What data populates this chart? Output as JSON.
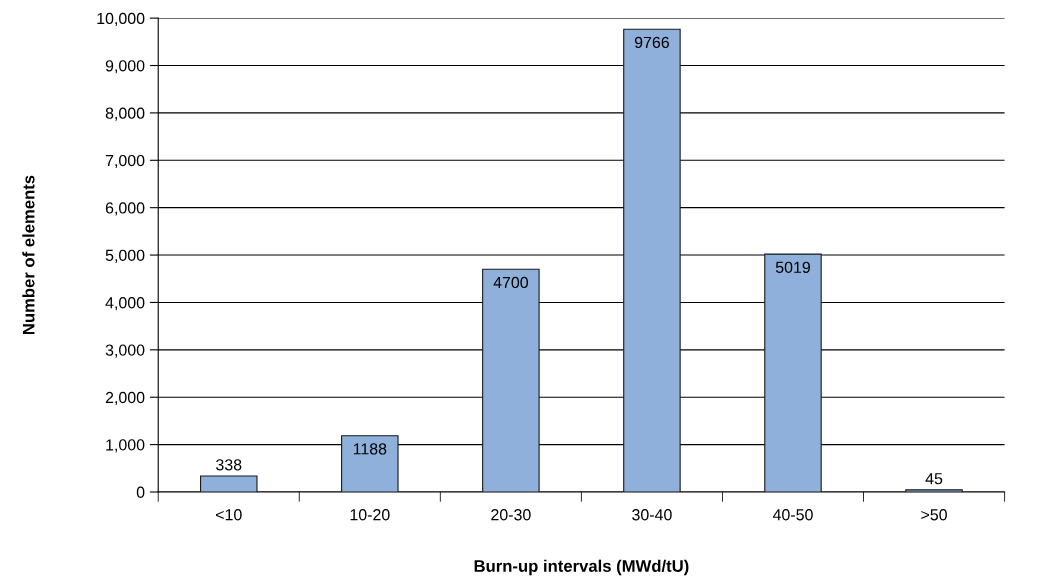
{
  "chart_data": {
    "type": "bar",
    "xlabel": "Burn-up intervals (MWd/tU)",
    "ylabel": "Number of elements",
    "categories": [
      "<10",
      "10-20",
      "20-30",
      "30-40",
      "40-50",
      ">50"
    ],
    "values": [
      338,
      1188,
      4700,
      9766,
      5019,
      45
    ],
    "color": "#8eb0da",
    "ylim": [
      0,
      10000
    ],
    "yticks": [
      {
        "value": 0,
        "label": "0"
      },
      {
        "value": 1000,
        "label": "1,000"
      },
      {
        "value": 2000,
        "label": "2,000"
      },
      {
        "value": 3000,
        "label": "3,000"
      },
      {
        "value": 4000,
        "label": "4,000"
      },
      {
        "value": 5000,
        "label": "5,000"
      },
      {
        "value": 6000,
        "label": "6,000"
      },
      {
        "value": 7000,
        "label": "7,000"
      },
      {
        "value": 8000,
        "label": "8,000"
      },
      {
        "value": 9000,
        "label": "9,000"
      },
      {
        "value": 10000,
        "label": "10,000"
      }
    ],
    "grid": "y",
    "data_labels": true,
    "legend": false
  }
}
